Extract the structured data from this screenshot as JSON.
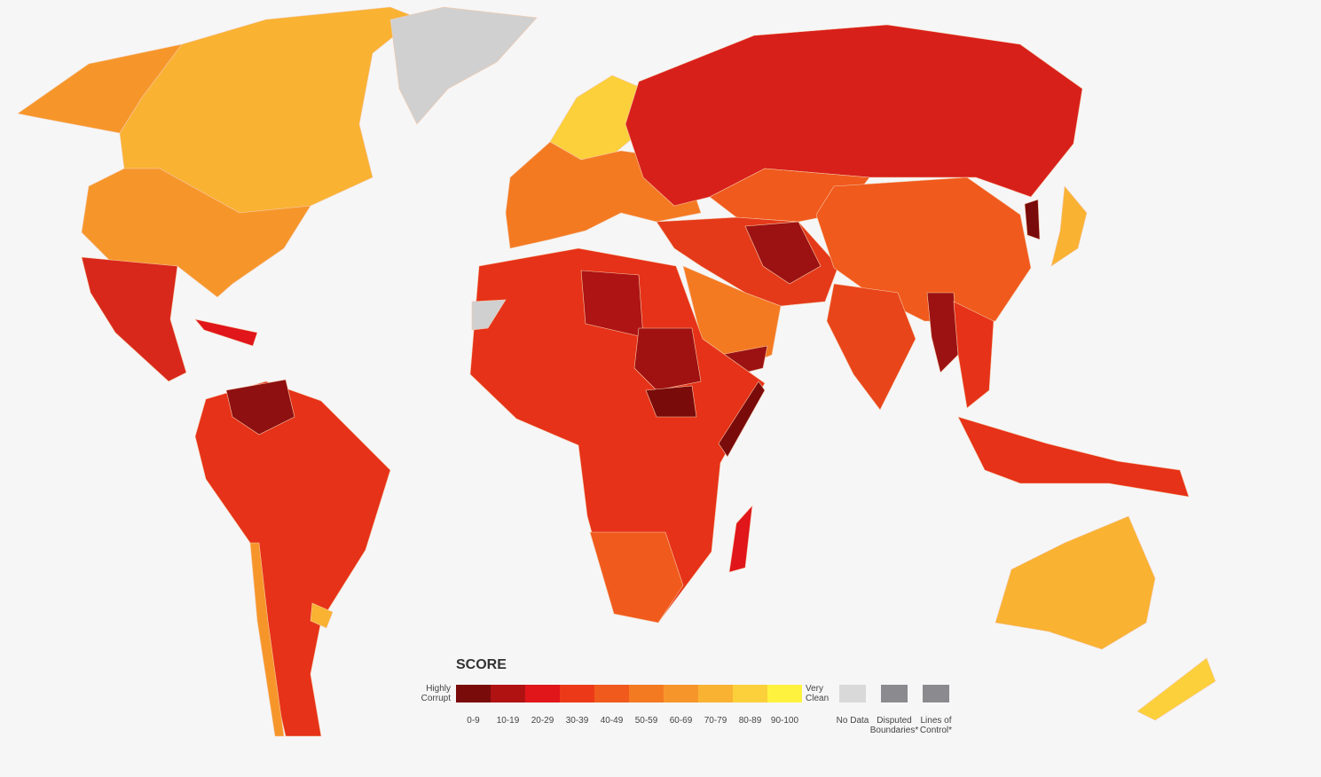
{
  "legend": {
    "title": "SCORE",
    "low_label": "Highly Corrupt",
    "high_label": "Very Clean",
    "bins": [
      {
        "label": "0-9",
        "color": "#7a0b0b"
      },
      {
        "label": "10-19",
        "color": "#b01212"
      },
      {
        "label": "20-29",
        "color": "#e0161a"
      },
      {
        "label": "30-39",
        "color": "#ec3a18"
      },
      {
        "label": "40-49",
        "color": "#f05a1c"
      },
      {
        "label": "50-59",
        "color": "#f47a22"
      },
      {
        "label": "60-69",
        "color": "#f6962a"
      },
      {
        "label": "70-79",
        "color": "#f9b232"
      },
      {
        "label": "80-89",
        "color": "#fcd03a"
      },
      {
        "label": "90-100",
        "color": "#fff23f"
      }
    ],
    "extras": [
      {
        "label": "No Data",
        "color": "#d9d9d9"
      },
      {
        "label": "Disputed Boundaries*",
        "color": "#8a8a8f"
      },
      {
        "label": "Lines of Control*",
        "color": "#8a8a8f"
      }
    ]
  }
}
